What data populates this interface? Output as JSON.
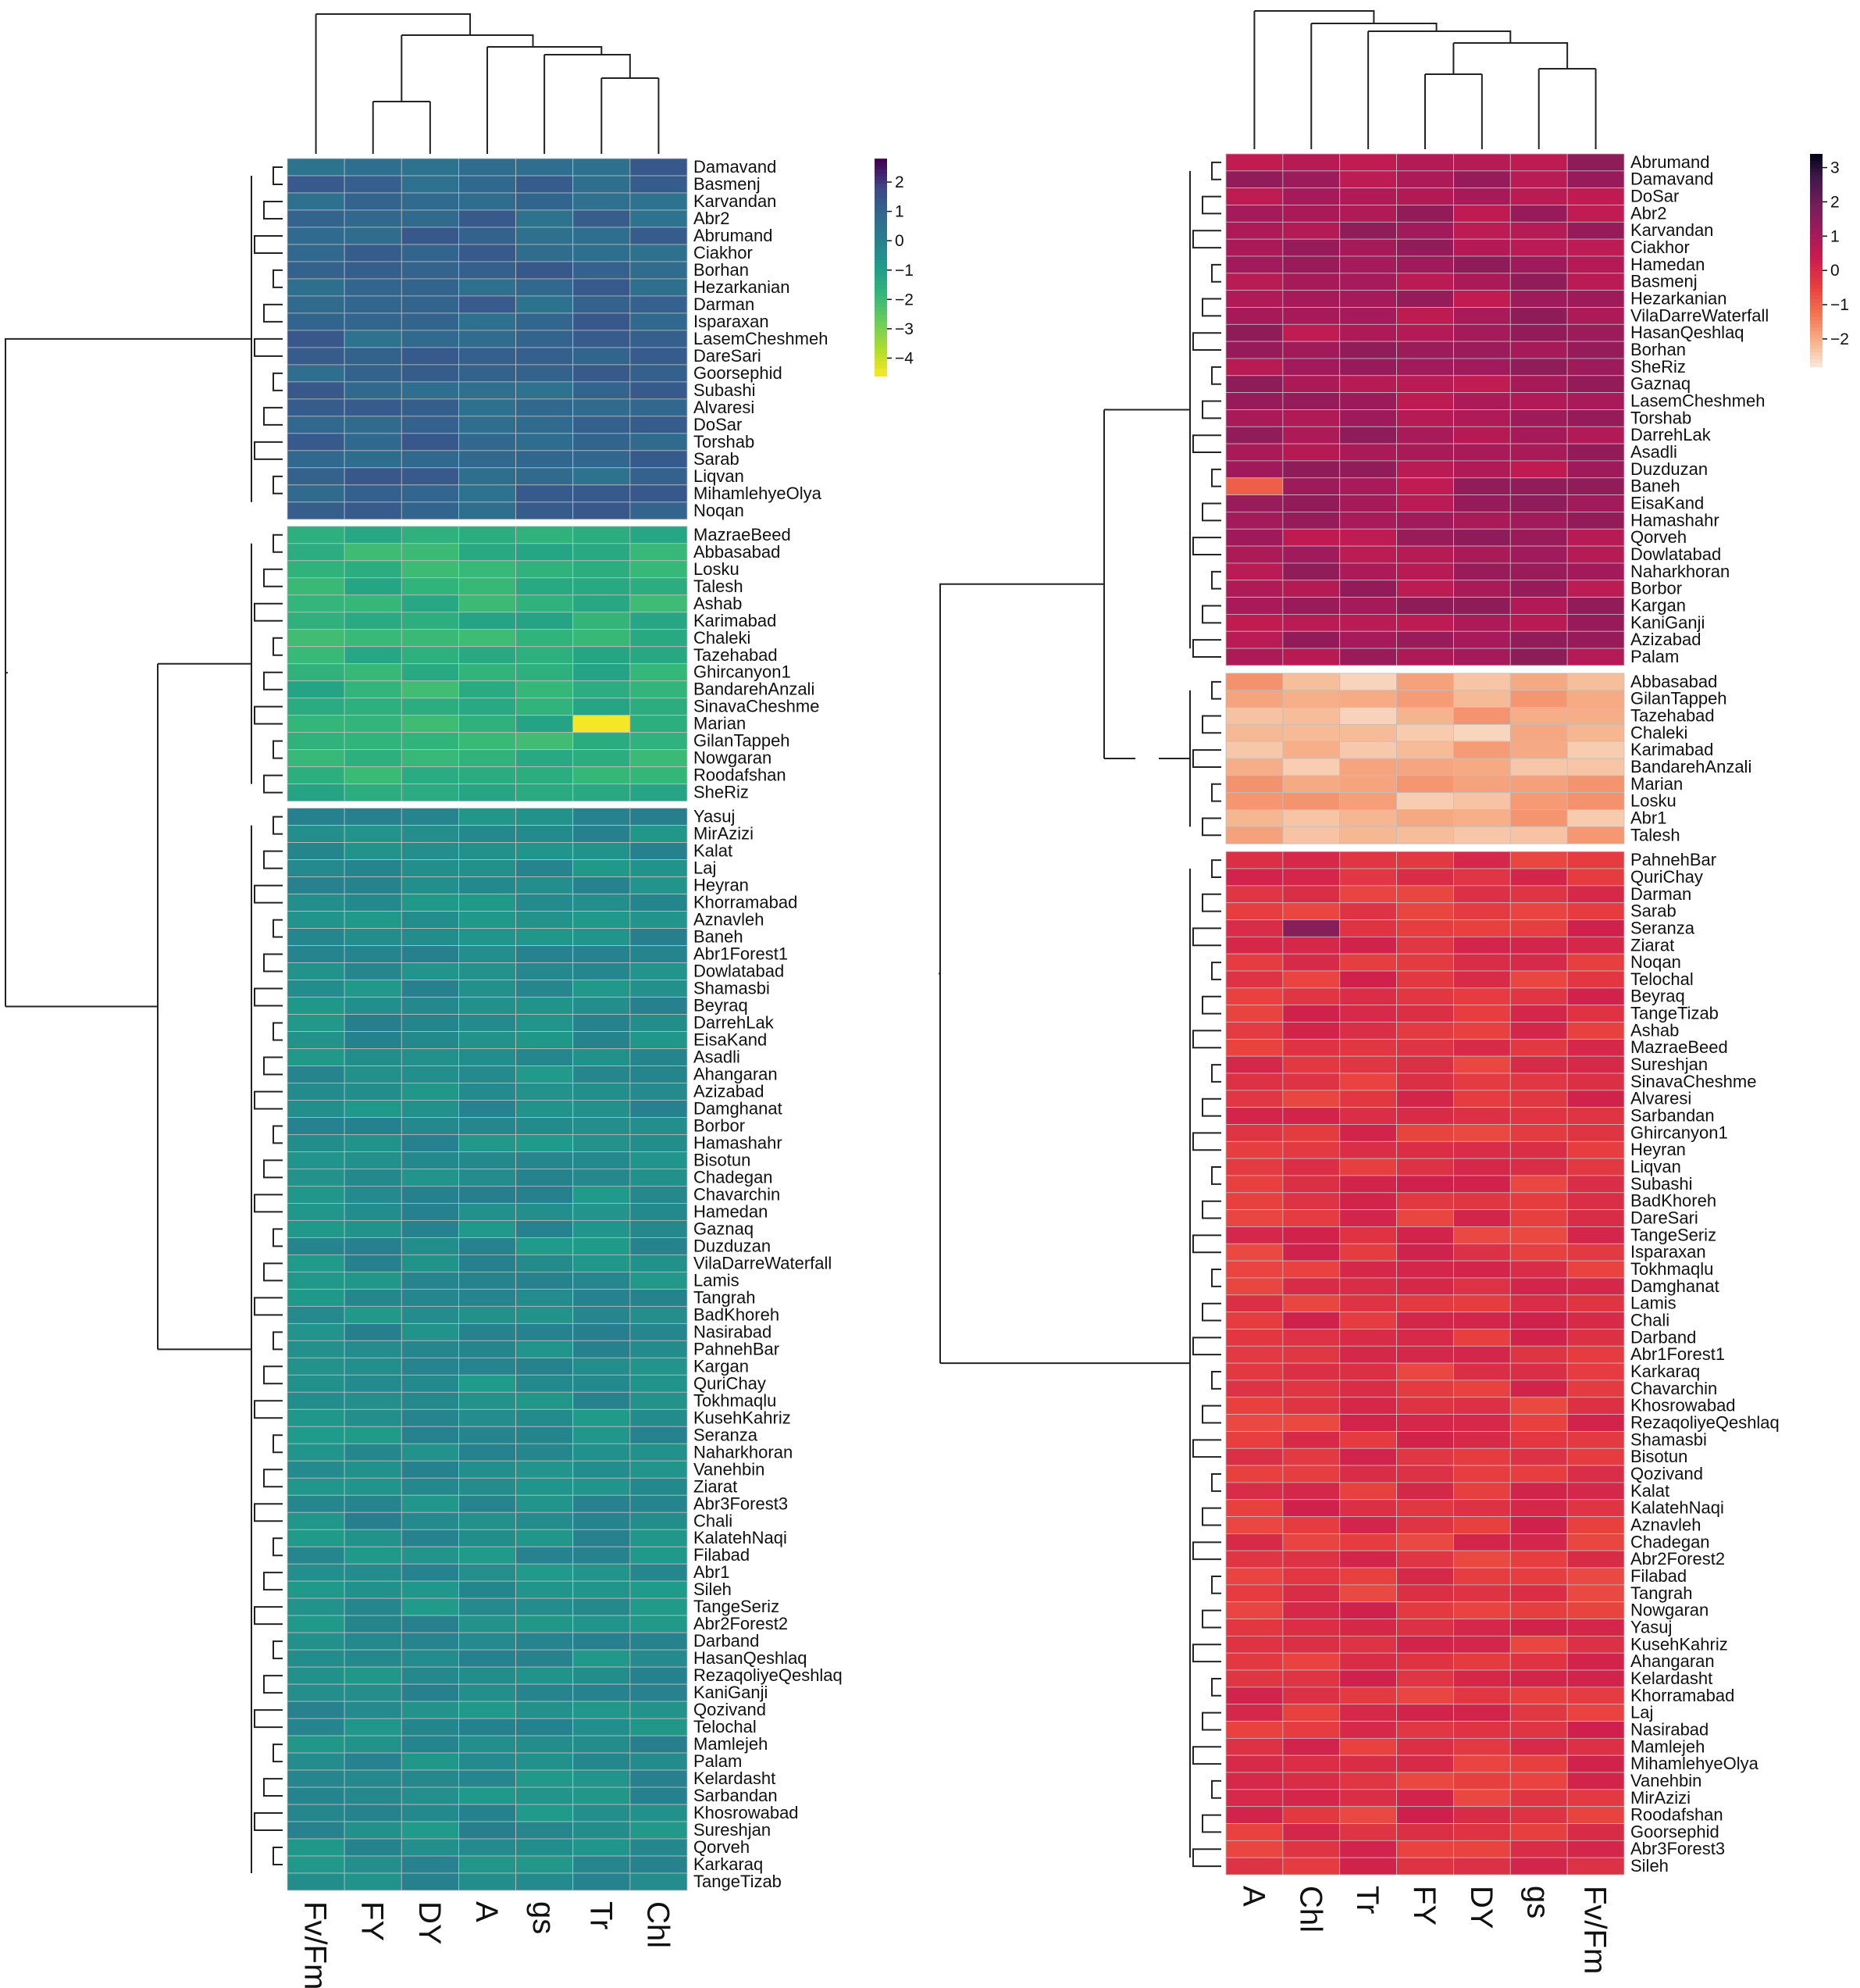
{
  "chart_data": [
    {
      "type": "heatmap",
      "colormap": "viridis",
      "columns": [
        "Fv/Fm",
        "FY",
        "DY",
        "A",
        "gs",
        "Tr",
        "Chl"
      ],
      "colorbar": {
        "min": -4.6,
        "max": 2.8,
        "ticks": [
          2,
          1,
          0,
          -1,
          -2,
          -3,
          -4
        ],
        "tick_labels": [
          "2",
          "1",
          "0",
          "−1",
          "−2",
          "−3",
          "−4"
        ]
      },
      "groups": [
        {
          "rows": [
            "Damavand",
            "Basmenj",
            "Karvandan",
            "Abr2",
            "Abrumand",
            "Ciakhor",
            "Borhan",
            "Hezarkanian",
            "Darman",
            "Isparaxan",
            "LasemCheshmeh",
            "DareSari",
            "Goorsephid",
            "Subashi",
            "Alvaresi",
            "DoSar",
            "Torshab",
            "Sarab",
            "Liqvan",
            "MihamlehyeOlya",
            "Noqan"
          ],
          "base": 1.0
        },
        {
          "rows": [
            "MazraeBeed",
            "Abbasabad",
            "Losku",
            "Talesh",
            "Ashab",
            "Karimabad",
            "Chaleki",
            "Tazehabad",
            "Ghircanyon1",
            "BandarehAnzali",
            "SinavaCheshme",
            "Marian",
            "GilanTappeh",
            "Nowgaran",
            "Roodafshan",
            "SheRiz"
          ],
          "base": -1.55
        },
        {
          "rows": [
            "Yasuj",
            "MirAzizi",
            "Kalat",
            "Laj",
            "Heyran",
            "Khorramabad",
            "Aznavleh",
            "Baneh",
            "Abr1Forest1",
            "Dowlatabad",
            "Shamasbi",
            "Beyraq",
            "DarrehLak",
            "EisaKand",
            "Asadli",
            "Ahangaran",
            "Azizabad",
            "Damghanat",
            "Borbor",
            "Hamashahr",
            "Bisotun",
            "Chadegan",
            "Chavarchin",
            "Hamedan",
            "Gaznaq",
            "Duzduzan",
            "VilaDarreWaterfall",
            "Lamis",
            "Tangrah",
            "BadKhoreh",
            "Nasirabad",
            "PahnehBar",
            "Kargan",
            "QuriChay",
            "Tokhmaqlu",
            "KusehKahriz",
            "Seranza",
            "Naharkhoran",
            "Vanehbin",
            "Ziarat",
            "Abr3Forest3",
            "Chali",
            "KalatehNaqi",
            "Filabad",
            "Abr1",
            "Sileh",
            "TangeSeriz",
            "Abr2Forest2",
            "Darband",
            "HasanQeshlaq",
            "RezaqoliyeQeshlaq",
            "KaniGanji",
            "Qozivand",
            "Telochal",
            "Mamlejeh",
            "Palam",
            "Kelardasht",
            "Sarbandan",
            "Khosrowabad",
            "Sureshjan",
            "Qorveh",
            "Karkaraq",
            "TangeTizab"
          ],
          "base": -0.35
        }
      ],
      "notable": [
        {
          "row": "Marian",
          "column": "Tr",
          "value": -4.5
        }
      ]
    },
    {
      "type": "heatmap",
      "colormap": "rocket",
      "columns": [
        "A",
        "Chl",
        "Tr",
        "FY",
        "DY",
        "gs",
        "Fv/Fm"
      ],
      "colorbar": {
        "min": -2.8,
        "max": 3.4,
        "ticks": [
          3,
          2,
          1,
          0,
          -1,
          -2
        ],
        "tick_labels": [
          "3",
          "2",
          "1",
          "0",
          "−1",
          "−2"
        ]
      },
      "groups": [
        {
          "rows": [
            "Abrumand",
            "Damavand",
            "DoSar",
            "Abr2",
            "Karvandan",
            "Ciakhor",
            "Hamedan",
            "Basmenj",
            "Hezarkanian",
            "VilaDarreWaterfall",
            "HasanQeshlaq",
            "Borhan",
            "SheRiz",
            "Gaznaq",
            "LasemCheshmeh",
            "Torshab",
            "DarrehLak",
            "Asadli",
            "Duzduzan",
            "Baneh",
            "EisaKand",
            "Hamashahr",
            "Qorveh",
            "Dowlatabad",
            "Naharkhoran",
            "Borbor",
            "Kargan",
            "KaniGanji",
            "Azizabad",
            "Palam"
          ],
          "base": 1.05
        },
        {
          "rows": [
            "Abbasabad",
            "GilanTappeh",
            "Tazehabad",
            "Chaleki",
            "Karimabad",
            "BandarehAnzali",
            "Marian",
            "Losku",
            "Abr1",
            "Talesh"
          ],
          "base": -2.05
        },
        {
          "rows": [
            "PahnehBar",
            "QuriChay",
            "Darman",
            "Sarab",
            "Seranza",
            "Ziarat",
            "Noqan",
            "Telochal",
            "Beyraq",
            "TangeTizab",
            "Ashab",
            "MazraeBeed",
            "Sureshjan",
            "SinavaCheshme",
            "Alvaresi",
            "Sarbandan",
            "Ghircanyon1",
            "Heyran",
            "Liqvan",
            "Subashi",
            "BadKhoreh",
            "DareSari",
            "TangeSeriz",
            "Isparaxan",
            "Tokhmaqlu",
            "Damghanat",
            "Lamis",
            "Chali",
            "Darband",
            "Abr1Forest1",
            "Karkaraq",
            "Chavarchin",
            "Khosrowabad",
            "RezaqoliyeQeshlaq",
            "Shamasbi",
            "Bisotun",
            "Qozivand",
            "Kalat",
            "KalatehNaqi",
            "Aznavleh",
            "Chadegan",
            "Abr2Forest2",
            "Filabad",
            "Tangrah",
            "Nowgaran",
            "Yasuj",
            "KusehKahriz",
            "Ahangaran",
            "Kelardasht",
            "Khorramabad",
            "Laj",
            "Nasirabad",
            "Mamlejeh",
            "MihamlehyeOlya",
            "Vanehbin",
            "MirAzizi",
            "Roodafshan",
            "Goorsephid",
            "Abr3Forest3",
            "Sileh"
          ],
          "base": -0.15
        }
      ],
      "notable": [
        {
          "row": "Seranza",
          "column": "Chl",
          "value": 1.6
        },
        {
          "row": "Baneh",
          "column": "A",
          "value": -0.9
        }
      ]
    }
  ]
}
